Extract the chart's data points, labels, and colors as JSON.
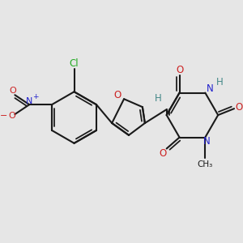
{
  "background_color": "#e6e6e6",
  "line_color": "#1a1a1a",
  "bond_lw": 1.5,
  "figsize": [
    3.0,
    3.0
  ],
  "dpi": 100,
  "colors": {
    "C": "#1a1a1a",
    "N": "#2222cc",
    "O": "#cc2222",
    "Cl": "#22aa22",
    "H": "#448888"
  }
}
